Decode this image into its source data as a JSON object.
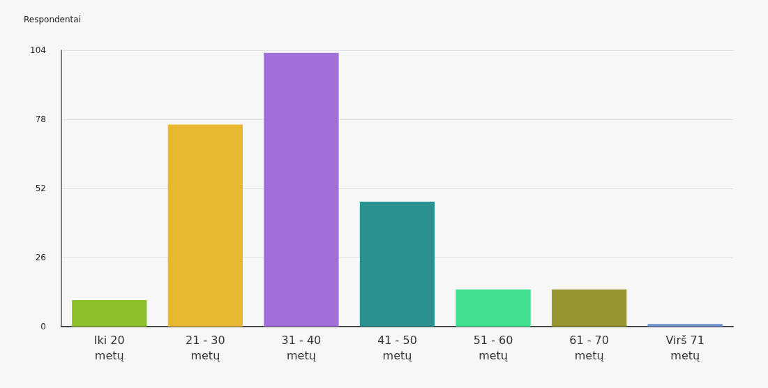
{
  "chart_data": {
    "type": "bar",
    "ylabel": "Respondentai",
    "categories": [
      "Iki 20\nmetų",
      "21 - 30\nmetų",
      "31 - 40\nmetų",
      "41 - 50\nmetų",
      "51 - 60\nmetų",
      "61 - 70\nmetų",
      "Virš 71\nmetų"
    ],
    "values": [
      10,
      76,
      103,
      47,
      14,
      14,
      1
    ],
    "colors": [
      "#8cbf2a",
      "#e8b830",
      "#a070d8",
      "#2a9090",
      "#40e090",
      "#959530",
      "#7090d0"
    ],
    "ylim": [
      0,
      104
    ],
    "yticks": [
      0,
      26,
      52,
      78,
      104
    ],
    "grid": "y"
  }
}
